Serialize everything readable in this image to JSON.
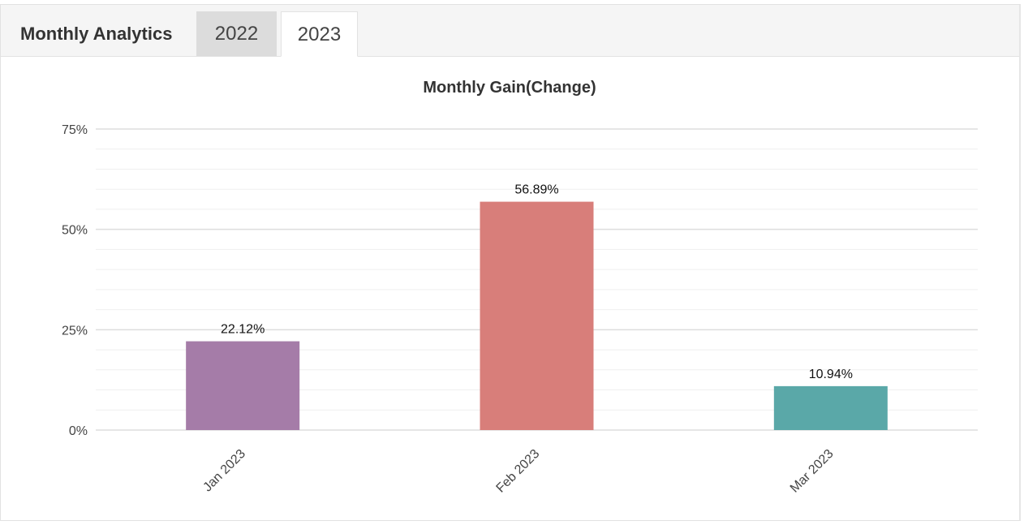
{
  "header": {
    "title": "Monthly Analytics",
    "tabs": [
      {
        "label": "2022",
        "active": false
      },
      {
        "label": "2023",
        "active": true
      }
    ]
  },
  "colors": {
    "bar_colors": [
      "#a57ca8",
      "#d87e7a",
      "#5aa8a8"
    ],
    "grid_major": "#dddddd",
    "grid_minor": "#efefef"
  },
  "chart_data": {
    "type": "bar",
    "title": "Monthly Gain(Change)",
    "categories": [
      "Jan 2023",
      "Feb 2023",
      "Mar 2023"
    ],
    "values": [
      22.12,
      56.89,
      10.94
    ],
    "data_labels": [
      "22.12%",
      "56.89%",
      "10.94%"
    ],
    "y_ticks": [
      0,
      25,
      50,
      75
    ],
    "y_tick_labels": [
      "0%",
      "25%",
      "50%",
      "75%"
    ],
    "ylim": [
      0,
      75
    ],
    "xlabel": "",
    "ylabel": "",
    "grid": true,
    "legend": false
  }
}
